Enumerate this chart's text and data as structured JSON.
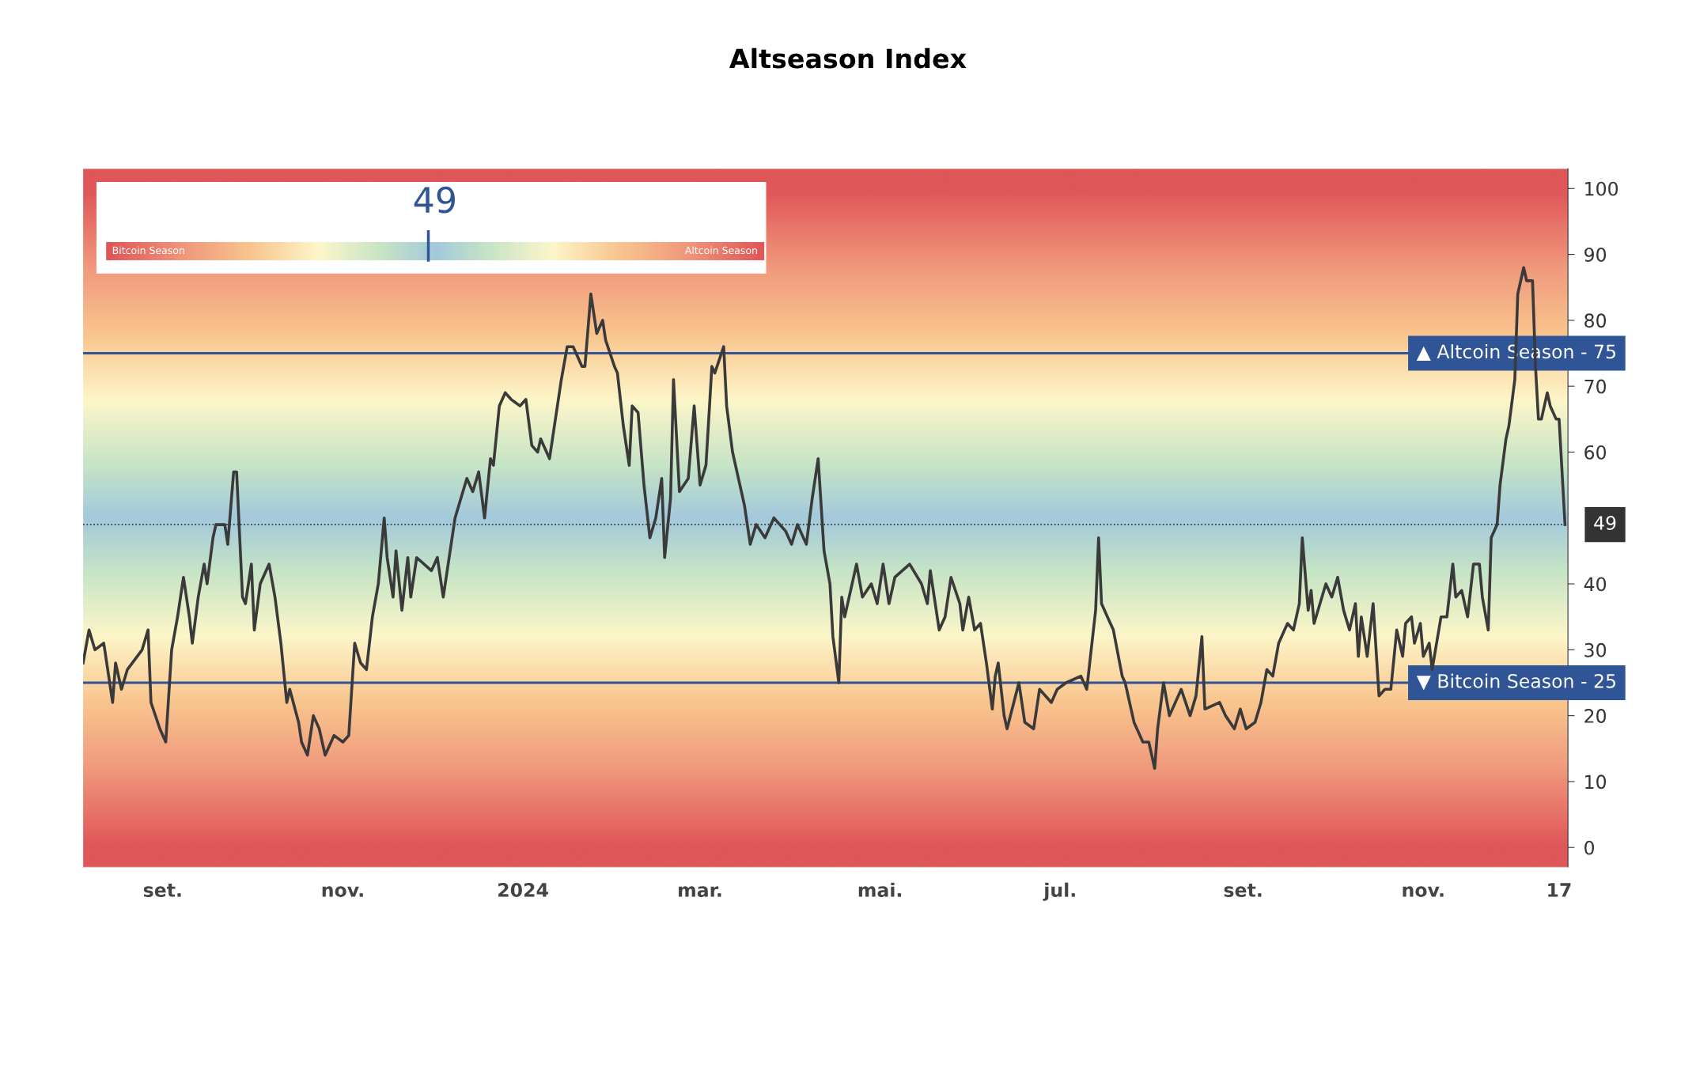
{
  "chart_data": {
    "type": "line",
    "title": "Altseason Index",
    "annotations": [
      "49",
      "Bitcoin Season",
      "Altcoin Season"
    ],
    "x": [
      "2023-08-05",
      "2023-08-07",
      "2023-08-09",
      "2023-08-12",
      "2023-08-15",
      "2023-08-16",
      "2023-08-18",
      "2023-08-20",
      "2023-08-25",
      "2023-08-27",
      "2023-08-28",
      "2023-08-31",
      "2023-09-02",
      "2023-09-04",
      "2023-09-06",
      "2023-09-08",
      "2023-09-10",
      "2023-09-11",
      "2023-09-13",
      "2023-09-15",
      "2023-09-16",
      "2023-09-18",
      "2023-09-19",
      "2023-09-22",
      "2023-09-23",
      "2023-09-25",
      "2023-09-26",
      "2023-09-28",
      "2023-09-29",
      "2023-10-01",
      "2023-10-02",
      "2023-10-04",
      "2023-10-07",
      "2023-10-09",
      "2023-10-11",
      "2023-10-13",
      "2023-10-14",
      "2023-10-17",
      "2023-10-18",
      "2023-10-20",
      "2023-10-22",
      "2023-10-24",
      "2023-10-26",
      "2023-10-28",
      "2023-10-29",
      "2023-11-01",
      "2023-11-03",
      "2023-11-05",
      "2023-11-07",
      "2023-11-09",
      "2023-11-11",
      "2023-11-13",
      "2023-11-15",
      "2023-11-16",
      "2023-11-18",
      "2023-11-19",
      "2023-11-21",
      "2023-11-23",
      "2023-11-24",
      "2023-11-26",
      "2023-12-01",
      "2023-12-03",
      "2023-12-05",
      "2023-12-07",
      "2023-12-09",
      "2023-12-13",
      "2023-12-15",
      "2023-12-17",
      "2023-12-19",
      "2023-12-21",
      "2023-12-22",
      "2023-12-24",
      "2023-12-26",
      "2023-12-28",
      "2023-12-31",
      "2024-01-02",
      "2024-01-04",
      "2024-01-06",
      "2024-01-07",
      "2024-01-10",
      "2024-01-12",
      "2024-01-14",
      "2024-01-16",
      "2024-01-18",
      "2024-01-19",
      "2024-01-21",
      "2024-01-22",
      "2024-01-24",
      "2024-01-26",
      "2024-01-28",
      "2024-01-29",
      "2024-02-01",
      "2024-02-02",
      "2024-02-04",
      "2024-02-06",
      "2024-02-07",
      "2024-02-09",
      "2024-02-11",
      "2024-02-13",
      "2024-02-15",
      "2024-02-17",
      "2024-02-18",
      "2024-02-20",
      "2024-02-21",
      "2024-02-23",
      "2024-02-26",
      "2024-02-28",
      "2024-03-01",
      "2024-03-03",
      "2024-03-05",
      "2024-03-06",
      "2024-03-09",
      "2024-03-10",
      "2024-03-12",
      "2024-03-14",
      "2024-03-16",
      "2024-03-18",
      "2024-03-20",
      "2024-03-23",
      "2024-03-26",
      "2024-03-30",
      "2024-04-01",
      "2024-04-03",
      "2024-04-06",
      "2024-04-08",
      "2024-04-10",
      "2024-04-12",
      "2024-04-14",
      "2024-04-15",
      "2024-04-17",
      "2024-04-18",
      "2024-04-19",
      "2024-04-23",
      "2024-04-25",
      "2024-04-28",
      "2024-04-30",
      "2024-05-02",
      "2024-05-04",
      "2024-05-06",
      "2024-05-11",
      "2024-05-15",
      "2024-05-17",
      "2024-05-18",
      "2024-05-21",
      "2024-05-23",
      "2024-05-25",
      "2024-05-28",
      "2024-05-29",
      "2024-05-31",
      "2024-06-02",
      "2024-06-04",
      "2024-06-06",
      "2024-06-08",
      "2024-06-09",
      "2024-06-10",
      "2024-06-12",
      "2024-06-13",
      "2024-06-17",
      "2024-06-19",
      "2024-06-22",
      "2024-06-24",
      "2024-06-28",
      "2024-06-30",
      "2024-07-03",
      "2024-07-08",
      "2024-07-10",
      "2024-07-13",
      "2024-07-14",
      "2024-07-15",
      "2024-07-17",
      "2024-07-19",
      "2024-07-22",
      "2024-07-23",
      "2024-07-26",
      "2024-07-29",
      "2024-07-31",
      "2024-08-02",
      "2024-08-03",
      "2024-08-05",
      "2024-08-07",
      "2024-08-11",
      "2024-08-14",
      "2024-08-16",
      "2024-08-18",
      "2024-08-19",
      "2024-08-24",
      "2024-08-26",
      "2024-08-29",
      "2024-08-31",
      "2024-09-02",
      "2024-09-05",
      "2024-09-07",
      "2024-09-09",
      "2024-09-11",
      "2024-09-13",
      "2024-09-16",
      "2024-09-18",
      "2024-09-20",
      "2024-09-21",
      "2024-09-23",
      "2024-09-24",
      "2024-09-25",
      "2024-09-29",
      "2024-10-01",
      "2024-10-03",
      "2024-10-05",
      "2024-10-07",
      "2024-10-09",
      "2024-10-10",
      "2024-10-11",
      "2024-10-13",
      "2024-10-15",
      "2024-10-17",
      "2024-10-19",
      "2024-10-21",
      "2024-10-23",
      "2024-10-25",
      "2024-10-26",
      "2024-10-28",
      "2024-10-29",
      "2024-10-31",
      "2024-11-01",
      "2024-11-03",
      "2024-11-04",
      "2024-11-07",
      "2024-11-09",
      "2024-11-11",
      "2024-11-12",
      "2024-11-14",
      "2024-11-16",
      "2024-11-18",
      "2024-11-20",
      "2024-11-21",
      "2024-11-23",
      "2024-11-24",
      "2024-11-26",
      "2024-11-27",
      "2024-11-29",
      "2024-11-30",
      "2024-12-02",
      "2024-12-03",
      "2024-12-05",
      "2024-12-06",
      "2024-12-08",
      "2024-12-09",
      "2024-12-10",
      "2024-12-11",
      "2024-12-13",
      "2024-12-14",
      "2024-12-16",
      "2024-12-17",
      "2024-12-19"
    ],
    "series": [
      {
        "color": "#3a3a3a",
        "values": [
          28,
          33,
          30,
          31,
          22,
          28,
          24,
          27,
          30,
          33,
          22,
          18,
          16,
          30,
          35,
          41,
          35,
          31,
          38,
          43,
          40,
          47,
          49,
          49,
          46,
          57,
          57,
          38,
          37,
          43,
          33,
          40,
          43,
          38,
          31,
          22,
          24,
          19,
          16,
          14,
          20,
          18,
          14,
          16,
          17,
          16,
          17,
          31,
          28,
          27,
          35,
          40,
          50,
          44,
          38,
          45,
          36,
          44,
          38,
          44,
          42,
          44,
          38,
          44,
          50,
          56,
          54,
          57,
          50,
          59,
          58,
          67,
          69,
          68,
          67,
          68,
          61,
          60,
          62,
          59,
          65,
          71,
          76,
          76,
          75,
          73,
          73,
          84,
          78,
          80,
          77,
          73,
          72,
          64,
          58,
          67,
          66,
          55,
          47,
          50,
          56,
          44,
          53,
          71,
          54,
          56,
          67,
          55,
          58,
          73,
          72,
          76,
          67,
          60,
          56,
          52,
          46,
          49,
          47,
          50,
          48,
          46,
          49,
          46,
          53,
          59,
          45,
          40,
          32,
          25,
          38,
          35,
          43,
          38,
          40,
          37,
          43,
          37,
          41,
          43,
          40,
          37,
          42,
          33,
          35,
          41,
          37,
          33,
          38,
          33,
          34,
          28,
          21,
          26,
          28,
          20,
          18,
          25,
          19,
          18,
          24,
          22,
          24,
          25,
          26,
          24,
          36,
          47,
          37,
          35,
          33,
          26,
          25,
          19,
          16,
          16,
          12,
          18,
          25,
          20,
          24,
          20,
          23,
          32,
          21,
          22,
          20,
          18,
          21,
          18,
          19,
          22,
          27,
          26,
          31,
          34,
          33,
          37,
          47,
          36,
          39,
          34,
          40,
          38,
          41,
          36,
          33,
          37,
          29,
          35,
          29,
          37,
          23,
          24,
          24,
          33,
          29,
          34,
          35,
          31,
          34,
          29,
          31,
          27,
          35,
          35,
          43,
          38,
          39,
          35,
          43,
          43,
          38,
          33,
          47,
          49,
          55,
          62,
          64,
          71,
          84,
          88,
          86,
          86,
          73,
          65,
          65,
          69,
          67,
          65,
          65,
          49
        ]
      }
    ],
    "xlim": [
      "2023-08-05",
      "2024-12-20"
    ],
    "xticks": [
      {
        "value": "2023-09-01",
        "label": "set."
      },
      {
        "value": "2023-11-01",
        "label": "nov."
      },
      {
        "value": "2024-01-01",
        "label": "2024"
      },
      {
        "value": "2024-03-01",
        "label": "mar."
      },
      {
        "value": "2024-05-01",
        "label": "mai."
      },
      {
        "value": "2024-07-01",
        "label": "jul."
      },
      {
        "value": "2024-09-01",
        "label": "set."
      },
      {
        "value": "2024-11-01",
        "label": "nov."
      },
      {
        "value": "2024-12-17",
        "label": "17"
      }
    ],
    "ylim": [
      -3,
      103
    ],
    "yticks": [
      0,
      10,
      20,
      30,
      40,
      60,
      70,
      80,
      90,
      100
    ],
    "ref_lines": [
      {
        "axis": "y",
        "value": 75,
        "label": "▲ Altcoin Season - 75",
        "color": "#2f5597",
        "line_style": "solid"
      },
      {
        "axis": "y",
        "value": 25,
        "label": "▼ Bitcoin Season - 25",
        "color": "#2f5597",
        "line_style": "solid"
      },
      {
        "axis": "y",
        "value": 49,
        "label": "49",
        "color": "#333333",
        "line_style": "dotted"
      }
    ],
    "grid": false,
    "legend": false,
    "marker": "none",
    "line_style": "solid"
  }
}
